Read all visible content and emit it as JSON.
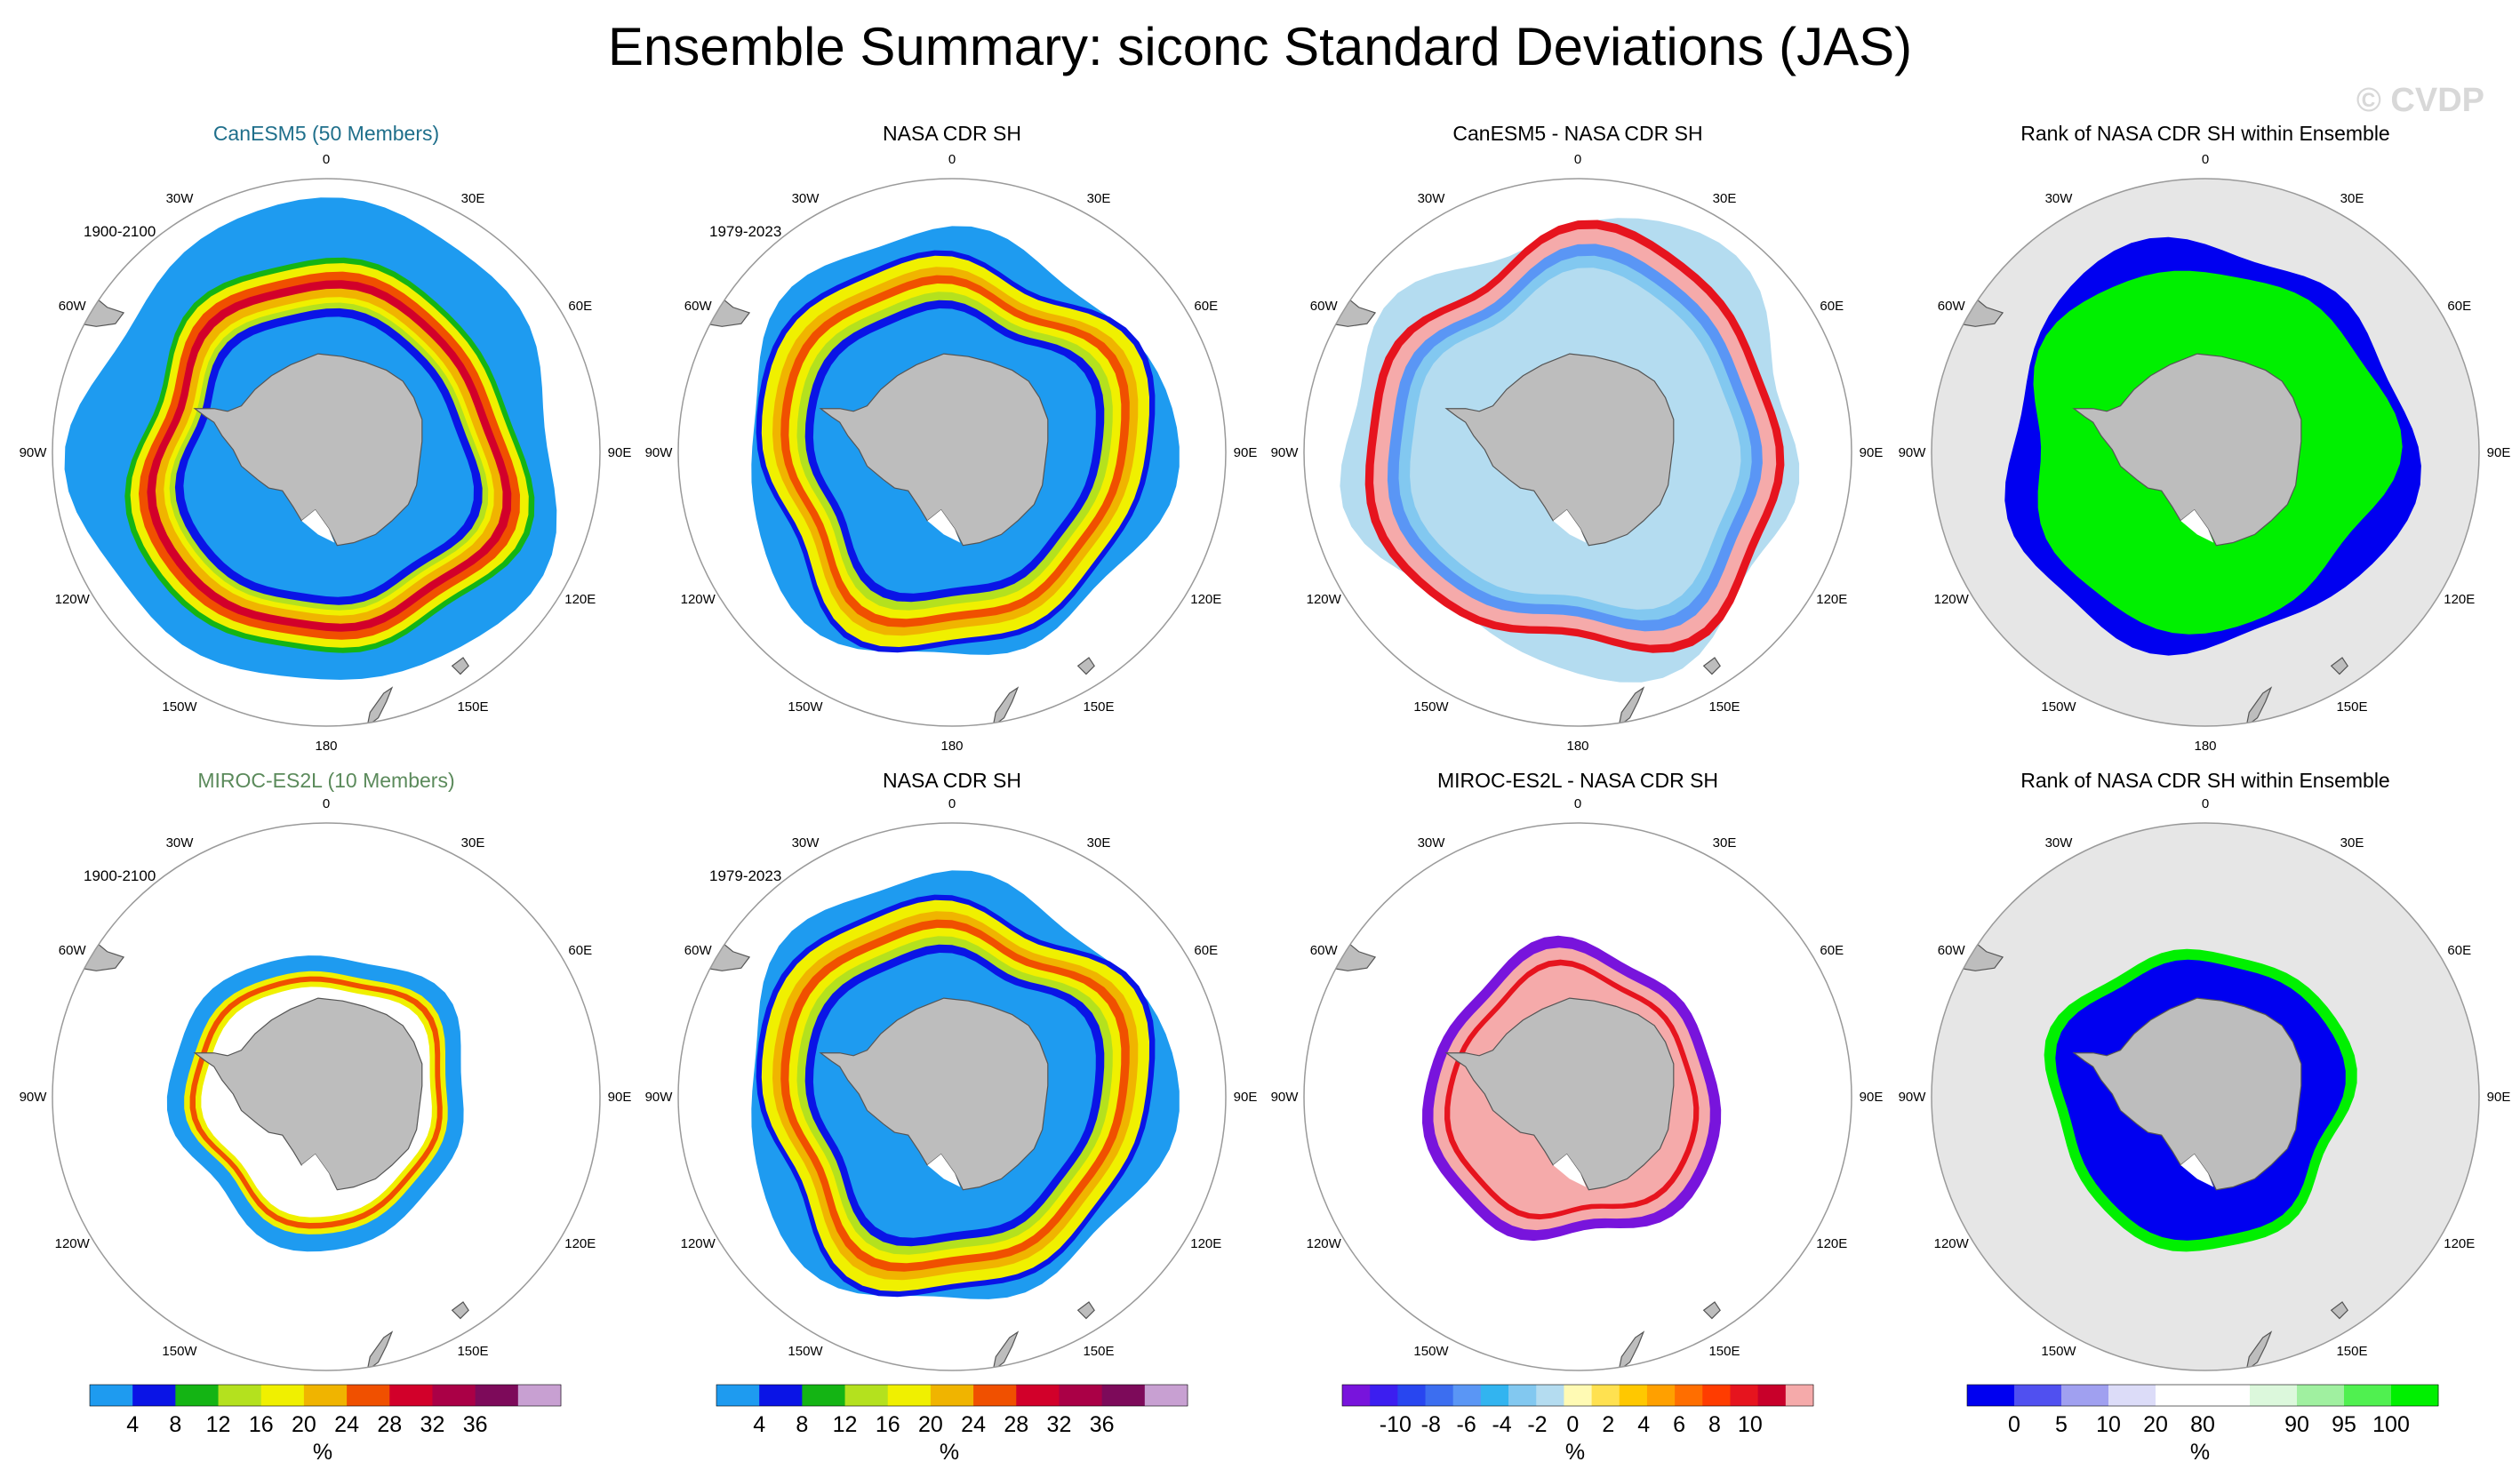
{
  "title": "Ensemble Summary: siconc Standard Deviations (JAS)",
  "watermark": "© CVDP",
  "colors": {
    "land": "#bdbdbd",
    "rank_bg": "#e6e6e6",
    "circle": "#9a9a9a",
    "title_canesm5": "#1f6f8b",
    "title_miroc": "#5b8a5b"
  },
  "longitude_labels": [
    "0",
    "30E",
    "60E",
    "90E",
    "120E",
    "150E",
    "180",
    "150W",
    "120W",
    "90W",
    "60W",
    "30W"
  ],
  "panels": [
    {
      "id": "canesm5-sd",
      "row": 0,
      "col": 0,
      "title": "CanESM5 (50 Members)",
      "title_color": "#1f6f8b",
      "period": "1900-2100",
      "kind": "sd",
      "field": "canesm5"
    },
    {
      "id": "obs-sd-1",
      "row": 0,
      "col": 1,
      "title": "NASA CDR SH",
      "title_color": "#000000",
      "period": "1979-2023",
      "kind": "sd",
      "field": "obs"
    },
    {
      "id": "canesm5-diff",
      "row": 0,
      "col": 2,
      "title": "CanESM5 - NASA CDR SH",
      "title_color": "#000000",
      "period": "",
      "kind": "diff",
      "field": "canesm5"
    },
    {
      "id": "canesm5-rank",
      "row": 0,
      "col": 3,
      "title": "Rank of NASA CDR SH within Ensemble",
      "title_color": "#000000",
      "period": "",
      "kind": "rank",
      "field": "canesm5"
    },
    {
      "id": "miroc-sd",
      "row": 1,
      "col": 0,
      "title": "MIROC-ES2L (10 Members)",
      "title_color": "#5b8a5b",
      "period": "1900-2100",
      "kind": "sd",
      "field": "miroc"
    },
    {
      "id": "obs-sd-2",
      "row": 1,
      "col": 1,
      "title": "NASA CDR SH",
      "title_color": "#000000",
      "period": "1979-2023",
      "kind": "sd",
      "field": "obs"
    },
    {
      "id": "miroc-diff",
      "row": 1,
      "col": 2,
      "title": "MIROC-ES2L - NASA CDR SH",
      "title_color": "#000000",
      "period": "",
      "kind": "diff",
      "field": "miroc"
    },
    {
      "id": "miroc-rank",
      "row": 1,
      "col": 3,
      "title": "Rank of NASA CDR SH within Ensemble",
      "title_color": "#000000",
      "period": "",
      "kind": "rank",
      "field": "miroc"
    }
  ],
  "colorbars": [
    {
      "id": "cb-sd-1",
      "col": 0,
      "unit": "%",
      "colors": [
        "#1e9bf0",
        "#0a14e6",
        "#14b414",
        "#b4e11e",
        "#f0f000",
        "#f0b400",
        "#f05000",
        "#d2002a",
        "#aa0046",
        "#7d0a5a",
        "#c8a0d2"
      ],
      "tick_labels": [
        "4",
        "8",
        "12",
        "16",
        "20",
        "24",
        "28",
        "32",
        "36"
      ]
    },
    {
      "id": "cb-sd-2",
      "col": 1,
      "unit": "%",
      "colors": [
        "#1e9bf0",
        "#0a14e6",
        "#14b414",
        "#b4e11e",
        "#f0f000",
        "#f0b400",
        "#f05000",
        "#d2002a",
        "#aa0046",
        "#7d0a5a",
        "#c8a0d2"
      ],
      "tick_labels": [
        "4",
        "8",
        "12",
        "16",
        "20",
        "24",
        "28",
        "32",
        "36"
      ]
    },
    {
      "id": "cb-diff",
      "col": 2,
      "unit": "%",
      "colors": [
        "#7814dc",
        "#3c1ef0",
        "#2846f0",
        "#3c6ef0",
        "#5a96f5",
        "#32b4f0",
        "#82c8f0",
        "#b4dcf0",
        "#fffab4",
        "#ffe150",
        "#ffc800",
        "#ffa000",
        "#ff6e00",
        "#ff3c00",
        "#e6141e",
        "#c8002a",
        "#f5aaaa"
      ],
      "tick_labels": [
        "-10",
        "-8",
        "-6",
        "-4",
        "-2",
        "0",
        "2",
        "4",
        "6",
        "8",
        "10"
      ]
    },
    {
      "id": "cb-rank",
      "col": 3,
      "unit": "%",
      "colors": [
        "#0000f0",
        "#5050f0",
        "#a0a0f0",
        "#dcdcf8",
        "#ffffff",
        "#ffffff",
        "#dcf8dc",
        "#a0f0a0",
        "#50f050",
        "#00f000"
      ],
      "tick_labels": [
        "0",
        "5",
        "10",
        "20",
        "80",
        "90",
        "95",
        "100"
      ]
    }
  ],
  "chart_data": [
    {
      "type": "heatmap",
      "title": "CanESM5 (50 Members)",
      "subtitle": "1900-2100",
      "variable": "siconc standard deviation",
      "units": "%",
      "levels": [
        4,
        8,
        12,
        16,
        20,
        24,
        28,
        32,
        36
      ],
      "region": "Southern Hemisphere"
    },
    {
      "type": "heatmap",
      "title": "NASA CDR SH",
      "subtitle": "1979-2023",
      "variable": "siconc standard deviation",
      "units": "%",
      "levels": [
        4,
        8,
        12,
        16,
        20,
        24,
        28,
        32,
        36
      ],
      "region": "Southern Hemisphere"
    },
    {
      "type": "heatmap",
      "title": "CanESM5 - NASA CDR SH",
      "variable": "siconc standard deviation difference",
      "units": "%",
      "levels": [
        -10,
        -8,
        -6,
        -4,
        -2,
        0,
        2,
        4,
        6,
        8,
        10
      ],
      "region": "Southern Hemisphere"
    },
    {
      "type": "heatmap",
      "title": "Rank of NASA CDR SH within Ensemble",
      "variable": "rank",
      "units": "%",
      "levels": [
        0,
        5,
        10,
        20,
        80,
        90,
        95,
        100
      ],
      "region": "Southern Hemisphere"
    },
    {
      "type": "heatmap",
      "title": "MIROC-ES2L (10 Members)",
      "subtitle": "1900-2100",
      "variable": "siconc standard deviation",
      "units": "%",
      "levels": [
        4,
        8,
        12,
        16,
        20,
        24,
        28,
        32,
        36
      ],
      "region": "Southern Hemisphere"
    },
    {
      "type": "heatmap",
      "title": "NASA CDR SH",
      "subtitle": "1979-2023",
      "variable": "siconc standard deviation",
      "units": "%",
      "levels": [
        4,
        8,
        12,
        16,
        20,
        24,
        28,
        32,
        36
      ],
      "region": "Southern Hemisphere"
    },
    {
      "type": "heatmap",
      "title": "MIROC-ES2L - NASA CDR SH",
      "variable": "siconc standard deviation difference",
      "units": "%",
      "levels": [
        -10,
        -8,
        -6,
        -4,
        -2,
        0,
        2,
        4,
        6,
        8,
        10
      ],
      "region": "Southern Hemisphere"
    },
    {
      "type": "heatmap",
      "title": "Rank of NASA CDR SH within Ensemble",
      "variable": "rank",
      "units": "%",
      "levels": [
        0,
        5,
        10,
        20,
        80,
        90,
        95,
        100
      ],
      "region": "Southern Hemisphere"
    }
  ]
}
